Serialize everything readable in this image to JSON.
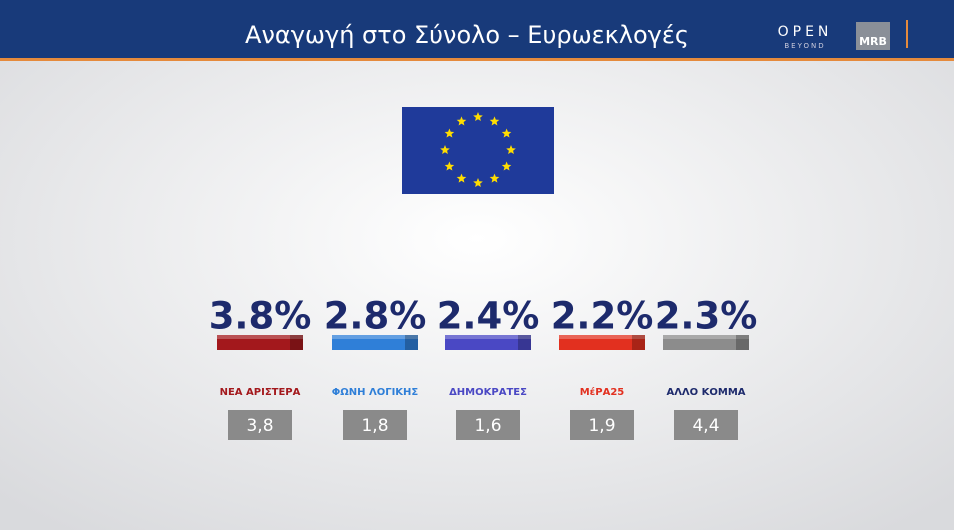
{
  "header": {
    "title": "Αναγωγή στο Σύνολο – Ευρωεκλογές",
    "brand": "OPEN",
    "brand_sub": "BEYOND",
    "pollster": "MRB"
  },
  "chart_data": {
    "type": "bar",
    "categories": [
      "ΝΕΑ ΑΡΙΣΤΕΡΑ",
      "ΦΩΝΗ ΛΟΓΙΚΗΣ",
      "ΔΗΜΟΚΡΑΤΕΣ",
      "ΜέΡΑ25",
      "ΑΛΛΟ ΚΟΜΜΑ"
    ],
    "values": [
      3.8,
      2.8,
      2.4,
      2.2,
      2.3
    ],
    "value_labels": [
      "3.8%",
      "2.8%",
      "2.4%",
      "2.2%",
      "2.3%"
    ],
    "colors": [
      "#a3181c",
      "#2f7fd8",
      "#4a48c4",
      "#e2301f",
      "#8c8c8c"
    ],
    "previous": {
      "values": [
        3.8,
        1.8,
        1.6,
        1.9,
        4.4
      ],
      "value_labels": [
        "3,8",
        "1,8",
        "1,6",
        "1,9",
        "4,4"
      ]
    }
  }
}
